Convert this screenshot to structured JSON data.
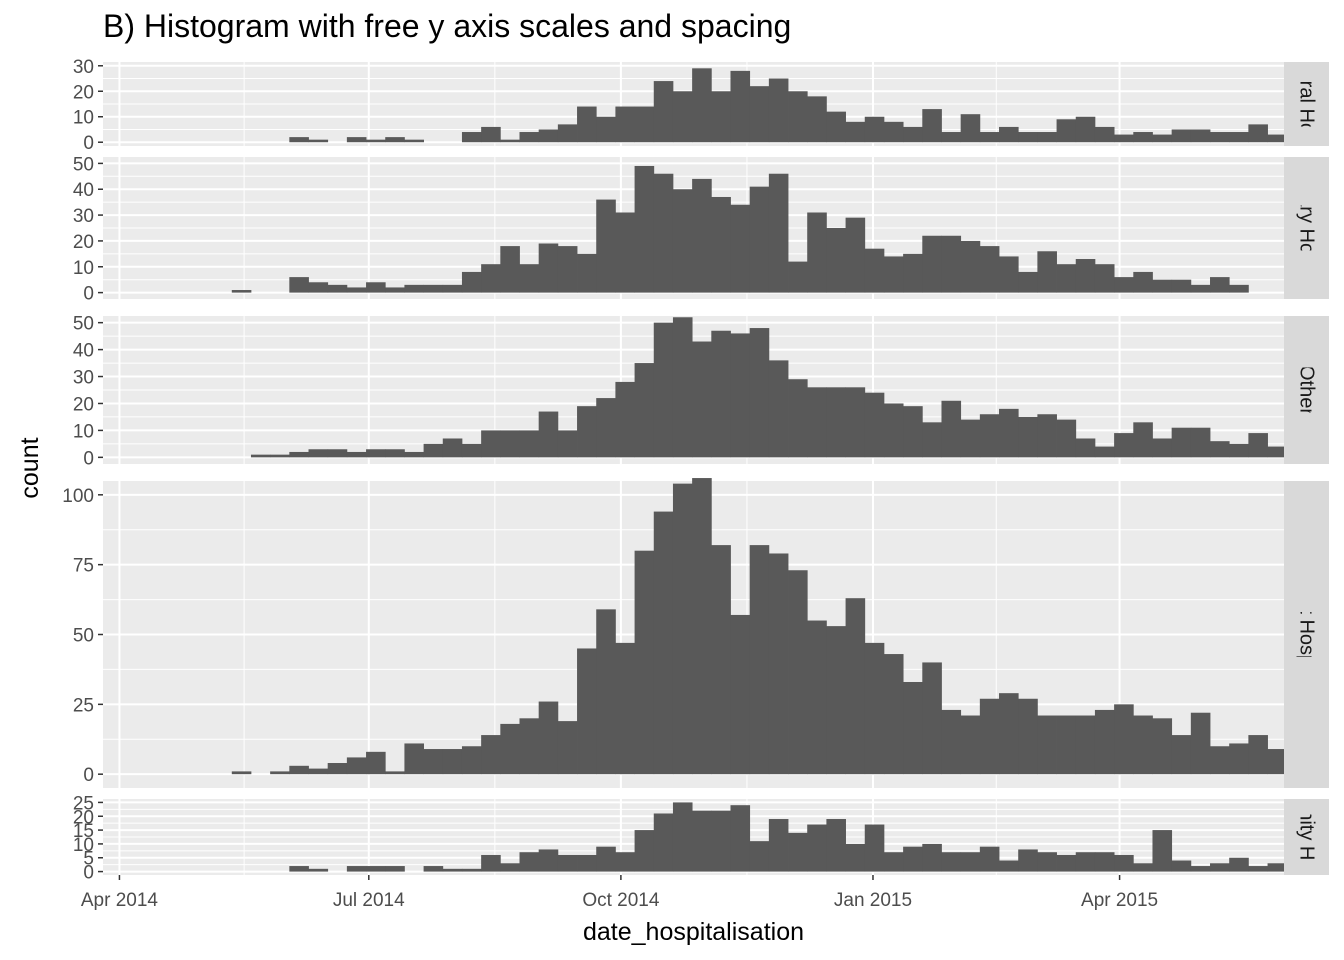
{
  "chart_data": {
    "type": "bar",
    "title": "B) Histogram with free y axis scales and spacing",
    "xlabel": "date_hospitalisation",
    "ylabel": "count",
    "x_ticks": [
      "Apr 2014",
      "Jul 2014",
      "Oct 2014",
      "Jan 2015",
      "Apr 2015"
    ],
    "x_tick_dates": [
      "2014-04-01",
      "2014-07-01",
      "2014-10-01",
      "2015-01-01",
      "2015-04-01"
    ],
    "x_range": [
      "2014-03-26",
      "2015-05-31"
    ],
    "bin_start": "2014-04-28",
    "bin_days": 7,
    "colors": {
      "bar": "#595959",
      "panel": "#ebebeb",
      "grid": "#ffffff",
      "strip": "#d9d9d9"
    },
    "panels": [
      {
        "name": "Central Hospital",
        "strip_text": "ntral Hos",
        "ylim": [
          0,
          30
        ],
        "y_ticks": [
          0,
          10,
          20,
          30
        ],
        "values": [
          0,
          0,
          0,
          0,
          0,
          2,
          1,
          0,
          2,
          1,
          2,
          1,
          0,
          0,
          4,
          6,
          1,
          4,
          5,
          7,
          14,
          10,
          14,
          14,
          24,
          20,
          29,
          20,
          28,
          22,
          25,
          20,
          18,
          12,
          8,
          10,
          8,
          6,
          13,
          4,
          11,
          4,
          6,
          4,
          4,
          9,
          10,
          6,
          3,
          4,
          3,
          5,
          5,
          4,
          4,
          7,
          3
        ]
      },
      {
        "name": "Military Hospital",
        "strip_text": "Military Hospita",
        "ylim": [
          0,
          50
        ],
        "y_ticks": [
          0,
          10,
          20,
          30,
          40,
          50
        ],
        "values": [
          0,
          0,
          1,
          0,
          0,
          6,
          4,
          3,
          2,
          4,
          2,
          3,
          3,
          3,
          8,
          11,
          18,
          11,
          19,
          18,
          15,
          36,
          31,
          49,
          46,
          40,
          44,
          37,
          34,
          41,
          46,
          12,
          31,
          25,
          29,
          17,
          14,
          15,
          22,
          22,
          20,
          18,
          14,
          8,
          16,
          11,
          13,
          11,
          6,
          8,
          5,
          5,
          3,
          6,
          3
        ]
      },
      {
        "name": "Other",
        "strip_text": "Other",
        "ylim": [
          0,
          50
        ],
        "y_ticks": [
          0,
          10,
          20,
          30,
          40,
          50
        ],
        "values": [
          0,
          0,
          0,
          1,
          1,
          2,
          3,
          3,
          2,
          3,
          3,
          2,
          5,
          7,
          5,
          10,
          10,
          10,
          17,
          10,
          19,
          22,
          28,
          35,
          50,
          52,
          43,
          47,
          46,
          48,
          36,
          29,
          26,
          26,
          26,
          24,
          20,
          19,
          13,
          21,
          14,
          16,
          18,
          15,
          16,
          14,
          7,
          4,
          9,
          13,
          7,
          11,
          11,
          6,
          5,
          9,
          4,
          2
        ]
      },
      {
        "name": "Port Hospital",
        "strip_text": "Port Hospital",
        "ylim": [
          0,
          100
        ],
        "y_ticks": [
          0,
          25,
          50,
          75,
          100
        ],
        "values": [
          0,
          0,
          1,
          0,
          1,
          3,
          2,
          4,
          6,
          8,
          1,
          11,
          9,
          9,
          10,
          14,
          18,
          20,
          26,
          19,
          45,
          59,
          47,
          80,
          94,
          104,
          106,
          82,
          57,
          82,
          79,
          73,
          55,
          53,
          63,
          47,
          43,
          33,
          40,
          23,
          21,
          27,
          29,
          27,
          21,
          21,
          21,
          23,
          25,
          21,
          20,
          14,
          22,
          10,
          11,
          14,
          9
        ]
      },
      {
        "name": "St. Mark's Maternity Hospital (SMMH)",
        "strip_text": "rnity Ho",
        "ylim": [
          0,
          25
        ],
        "y_ticks": [
          0,
          5,
          10,
          15,
          20,
          25
        ],
        "values": [
          0,
          0,
          0,
          0,
          0,
          2,
          1,
          0,
          2,
          2,
          2,
          0,
          2,
          1,
          1,
          6,
          3,
          7,
          8,
          6,
          6,
          9,
          7,
          15,
          21,
          25,
          22,
          22,
          24,
          11,
          19,
          14,
          17,
          19,
          10,
          17,
          7,
          9,
          10,
          7,
          7,
          9,
          4,
          8,
          7,
          6,
          7,
          7,
          6,
          3,
          15,
          4,
          2,
          3,
          5,
          2,
          3,
          2
        ]
      }
    ]
  }
}
